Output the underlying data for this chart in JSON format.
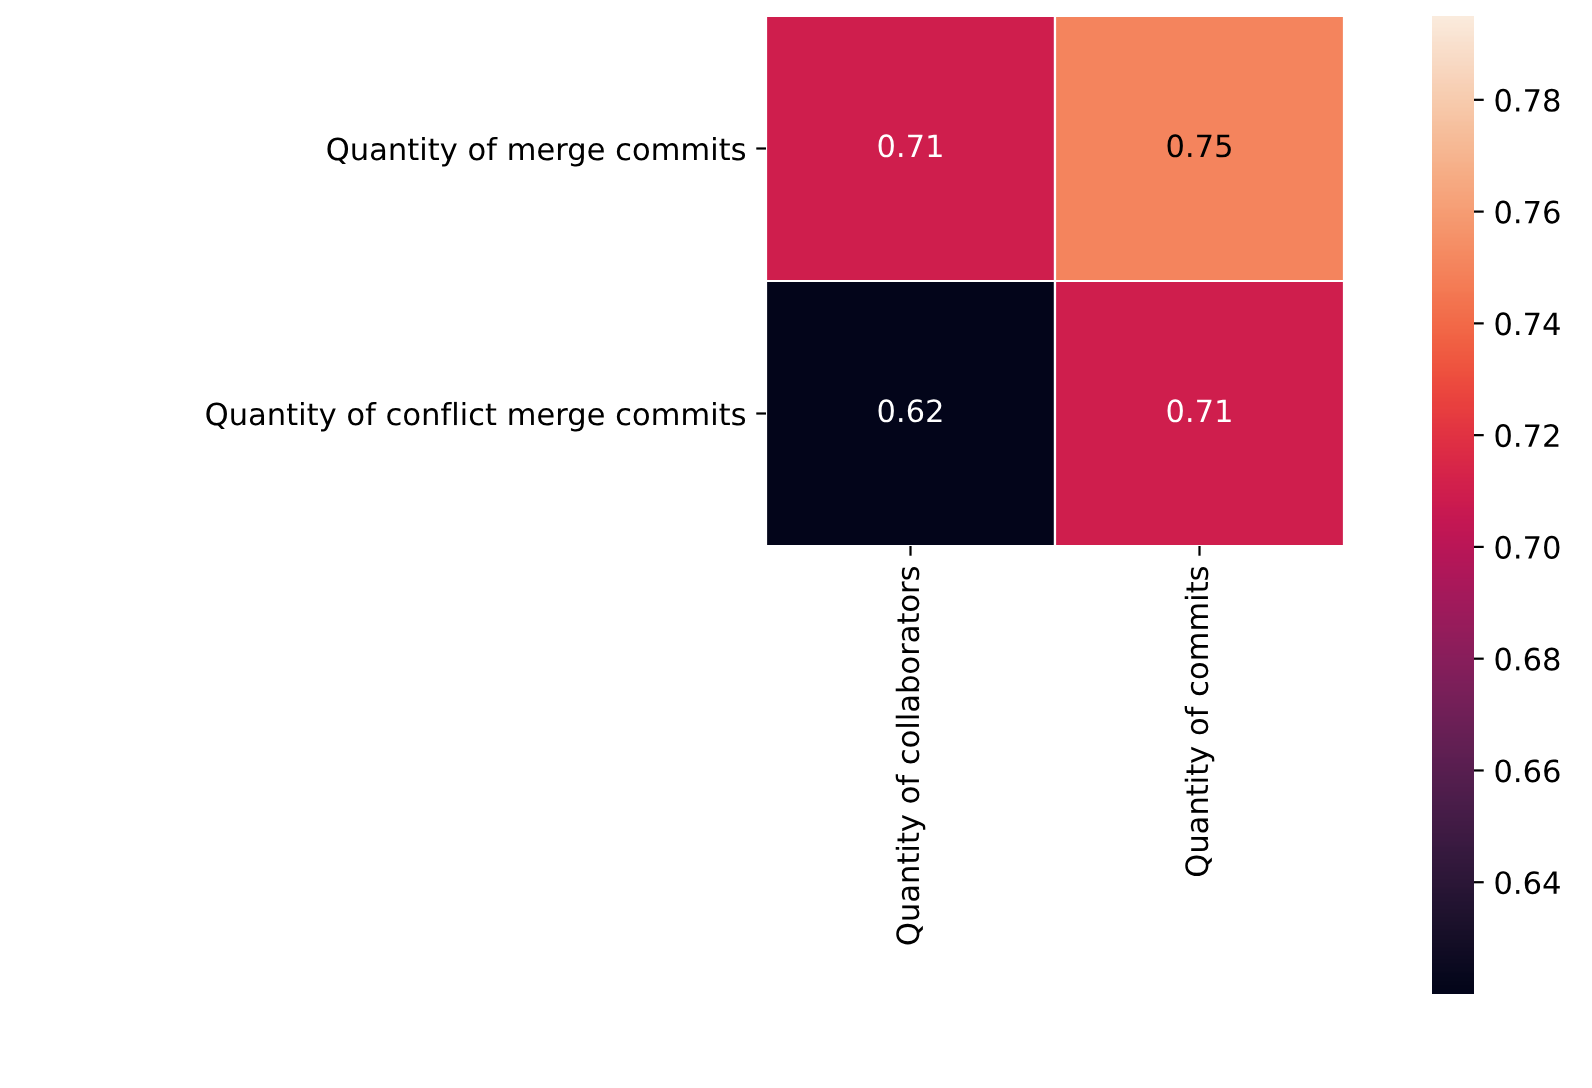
{
  "chart_data": {
    "type": "heatmap",
    "categories": [
      "Quantity of collaborators",
      "Quantity of commits"
    ],
    "y_categories": [
      "Quantity of merge commits",
      "Quantity of conflict merge commits"
    ],
    "cells": [
      [
        0.71,
        0.75
      ],
      [
        0.62,
        0.71
      ]
    ],
    "data_labels": true,
    "clim": [
      0.62,
      0.795
    ],
    "cticks": [
      0.64,
      0.66,
      0.68,
      {
        "value": 0.7,
        "label": "0.70"
      },
      0.72,
      0.74,
      0.76,
      0.78
    ]
  }
}
